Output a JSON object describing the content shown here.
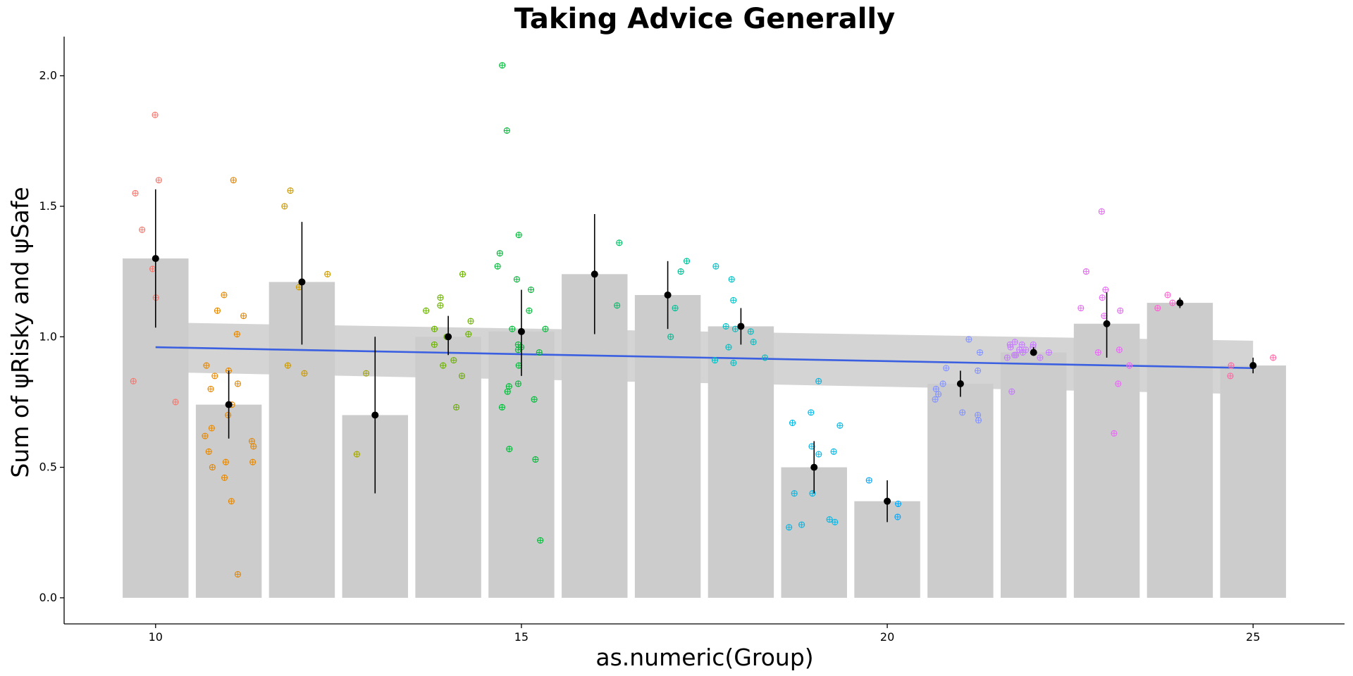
{
  "chart_data": {
    "type": "bar",
    "title": "Taking Advice Generally",
    "xlabel": "as.numeric(Group)",
    "ylabel": "Sum of ψRisky and ψSafe",
    "xlim": [
      8.75,
      26.25
    ],
    "ylim": [
      -0.1,
      2.15
    ],
    "x_ticks": [
      "10",
      "15",
      "20",
      "25"
    ],
    "y_ticks": [
      "0.0",
      "0.5",
      "1.0",
      "1.5",
      "2.0"
    ],
    "grid": false,
    "bar_color": "#cccccc",
    "mean_color": "#000000",
    "trend_color": "#3a5fe0",
    "ribbon_color": "#bdbdbd",
    "groups": [
      {
        "x": 10,
        "mean": 1.3,
        "lo": 1.035,
        "hi": 1.565,
        "color": "#f8766d",
        "points": [
          1.85,
          1.6,
          1.55,
          1.41,
          1.26,
          1.15,
          0.83,
          0.75
        ]
      },
      {
        "x": 11,
        "mean": 0.74,
        "lo": 0.61,
        "hi": 0.87,
        "color": "#e58700",
        "points": [
          1.6,
          1.16,
          1.1,
          1.08,
          1.01,
          0.89,
          0.87,
          0.85,
          0.82,
          0.8,
          0.74,
          0.7,
          0.65,
          0.62,
          0.6,
          0.58,
          0.56,
          0.52,
          0.52,
          0.5,
          0.46,
          0.37,
          0.09
        ]
      },
      {
        "x": 12,
        "mean": 1.21,
        "lo": 0.97,
        "hi": 1.44,
        "color": "#c99800",
        "points": [
          1.56,
          1.5,
          1.24,
          1.19,
          0.89,
          0.86
        ]
      },
      {
        "x": 13,
        "mean": 0.7,
        "lo": 0.4,
        "hi": 1.0,
        "color": "#a3a500",
        "points": [
          0.86,
          0.55
        ]
      },
      {
        "x": 14,
        "mean": 1.0,
        "lo": 0.93,
        "hi": 1.08,
        "color": "#6bb100",
        "points": [
          1.24,
          1.15,
          1.12,
          1.1,
          1.06,
          1.03,
          1.01,
          1.0,
          0.97,
          0.91,
          0.89,
          0.85,
          0.73
        ]
      },
      {
        "x": 15,
        "mean": 1.02,
        "lo": 0.85,
        "hi": 1.18,
        "color": "#00ba38",
        "points": [
          2.04,
          1.79,
          1.39,
          1.32,
          1.27,
          1.22,
          1.18,
          1.1,
          1.03,
          1.03,
          0.97,
          0.96,
          0.95,
          0.94,
          0.89,
          0.82,
          0.81,
          0.79,
          0.76,
          0.73,
          0.57,
          0.53,
          0.22
        ]
      },
      {
        "x": 16,
        "mean": 1.24,
        "lo": 1.01,
        "hi": 1.47,
        "color": "#00be67",
        "points": [
          1.36,
          1.12
        ]
      },
      {
        "x": 17,
        "mean": 1.16,
        "lo": 1.03,
        "hi": 1.29,
        "color": "#00bf96",
        "points": [
          1.29,
          1.25,
          1.11,
          1.0
        ]
      },
      {
        "x": 18,
        "mean": 1.04,
        "lo": 0.97,
        "hi": 1.11,
        "color": "#00bfc4",
        "points": [
          1.27,
          1.22,
          1.14,
          1.04,
          1.03,
          1.02,
          0.98,
          0.96,
          0.92,
          0.91,
          0.9
        ]
      },
      {
        "x": 19,
        "mean": 0.5,
        "lo": 0.4,
        "hi": 0.6,
        "color": "#00b8e7",
        "points": [
          0.83,
          0.71,
          0.67,
          0.66,
          0.58,
          0.56,
          0.55,
          0.4,
          0.4,
          0.3,
          0.29,
          0.28,
          0.27
        ]
      },
      {
        "x": 20,
        "mean": 0.37,
        "lo": 0.29,
        "hi": 0.45,
        "color": "#00a9ff",
        "points": [
          0.45,
          0.36,
          0.31
        ]
      },
      {
        "x": 21,
        "mean": 0.82,
        "lo": 0.77,
        "hi": 0.87,
        "color": "#8494ff",
        "points": [
          0.99,
          0.94,
          0.88,
          0.87,
          0.82,
          0.8,
          0.78,
          0.76,
          0.71,
          0.7,
          0.68
        ]
      },
      {
        "x": 22,
        "mean": 0.94,
        "lo": 0.93,
        "hi": 0.96,
        "color": "#c77cff",
        "points": [
          0.98,
          0.97,
          0.97,
          0.97,
          0.96,
          0.96,
          0.95,
          0.95,
          0.94,
          0.94,
          0.93,
          0.93,
          0.92,
          0.92,
          0.79
        ]
      },
      {
        "x": 23,
        "mean": 1.05,
        "lo": 0.92,
        "hi": 1.17,
        "color": "#e76bf3",
        "points": [
          1.48,
          1.25,
          1.18,
          1.15,
          1.11,
          1.1,
          1.08,
          0.95,
          0.94,
          0.89,
          0.82,
          0.63
        ]
      },
      {
        "x": 24,
        "mean": 1.13,
        "lo": 1.11,
        "hi": 1.15,
        "color": "#fd61d1",
        "points": [
          1.16,
          1.13,
          1.11
        ]
      },
      {
        "x": 25,
        "mean": 0.89,
        "lo": 0.86,
        "hi": 0.92,
        "color": "#ff67a4",
        "points": [
          0.92,
          0.89,
          0.85
        ]
      }
    ],
    "trend": {
      "x": [
        10,
        25
      ],
      "y": [
        0.96,
        0.88
      ],
      "lo": [
        0.865,
        0.78
      ],
      "hi": [
        1.055,
        0.985
      ]
    }
  }
}
